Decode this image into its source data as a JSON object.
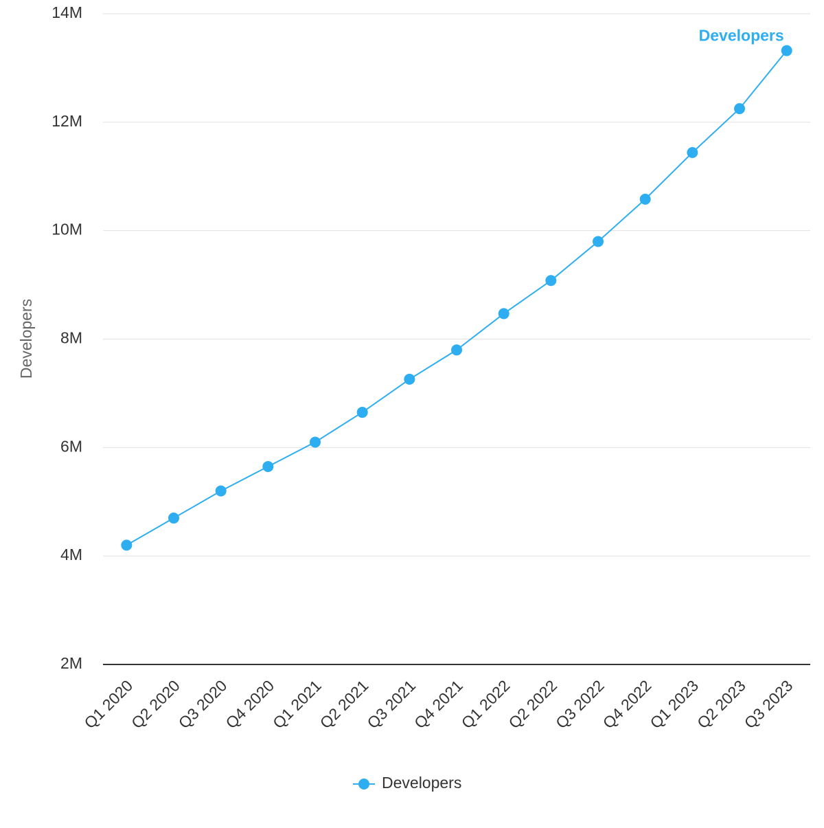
{
  "chart_data": {
    "type": "line",
    "y_axis_label": "Developers",
    "categories": [
      "Q1 2020",
      "Q2 2020",
      "Q3 2020",
      "Q4 2020",
      "Q1 2021",
      "Q2 2021",
      "Q3 2021",
      "Q4 2021",
      "Q1 2022",
      "Q2 2022",
      "Q3 2022",
      "Q4 2022",
      "Q1 2023",
      "Q2 2023",
      "Q3 2023"
    ],
    "series": [
      {
        "name": "Developers",
        "color": "#2eaef0",
        "values": [
          4.2,
          4.7,
          5.2,
          5.65,
          6.1,
          6.65,
          7.26,
          7.8,
          8.47,
          9.08,
          9.8,
          10.58,
          11.44,
          12.25,
          13.32
        ]
      }
    ],
    "ylim": [
      2,
      14
    ],
    "yticks": [
      {
        "value": 2,
        "label": "2M"
      },
      {
        "value": 4,
        "label": "4M"
      },
      {
        "value": 6,
        "label": "6M"
      },
      {
        "value": 8,
        "label": "8M"
      },
      {
        "value": 10,
        "label": "10M"
      },
      {
        "value": 12,
        "label": "12M"
      },
      {
        "value": 14,
        "label": "14M"
      }
    ],
    "grid": true,
    "legend": "bottom"
  }
}
